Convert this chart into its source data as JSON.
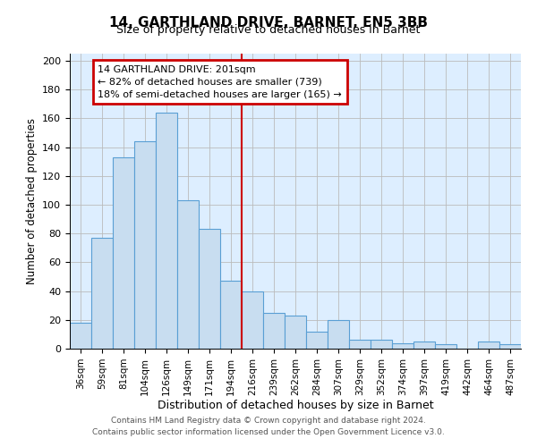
{
  "title": "14, GARTHLAND DRIVE, BARNET, EN5 3BB",
  "subtitle": "Size of property relative to detached houses in Barnet",
  "xlabel": "Distribution of detached houses by size in Barnet",
  "ylabel": "Number of detached properties",
  "bar_labels": [
    "36sqm",
    "59sqm",
    "81sqm",
    "104sqm",
    "126sqm",
    "149sqm",
    "171sqm",
    "194sqm",
    "216sqm",
    "239sqm",
    "262sqm",
    "284sqm",
    "307sqm",
    "329sqm",
    "352sqm",
    "374sqm",
    "397sqm",
    "419sqm",
    "442sqm",
    "464sqm",
    "487sqm"
  ],
  "bar_values": [
    18,
    77,
    133,
    144,
    164,
    103,
    83,
    47,
    40,
    25,
    23,
    12,
    20,
    6,
    6,
    4,
    5,
    3,
    0,
    5,
    3
  ],
  "bar_color": "#c8ddf0",
  "bar_edge_color": "#5a9fd4",
  "vline_x": 7.5,
  "vline_color": "#cc0000",
  "annotation_title": "14 GARTHLAND DRIVE: 201sqm",
  "annotation_line1": "← 82% of detached houses are smaller (739)",
  "annotation_line2": "18% of semi-detached houses are larger (165) →",
  "annotation_box_color": "#ffffff",
  "annotation_box_edge": "#cc0000",
  "ylim": [
    0,
    205
  ],
  "yticks": [
    0,
    20,
    40,
    60,
    80,
    100,
    120,
    140,
    160,
    180,
    200
  ],
  "footnote1": "Contains HM Land Registry data © Crown copyright and database right 2024.",
  "footnote2": "Contains public sector information licensed under the Open Government Licence v3.0.",
  "bg_color": "#ffffff",
  "plot_bg_color": "#ddeeff"
}
